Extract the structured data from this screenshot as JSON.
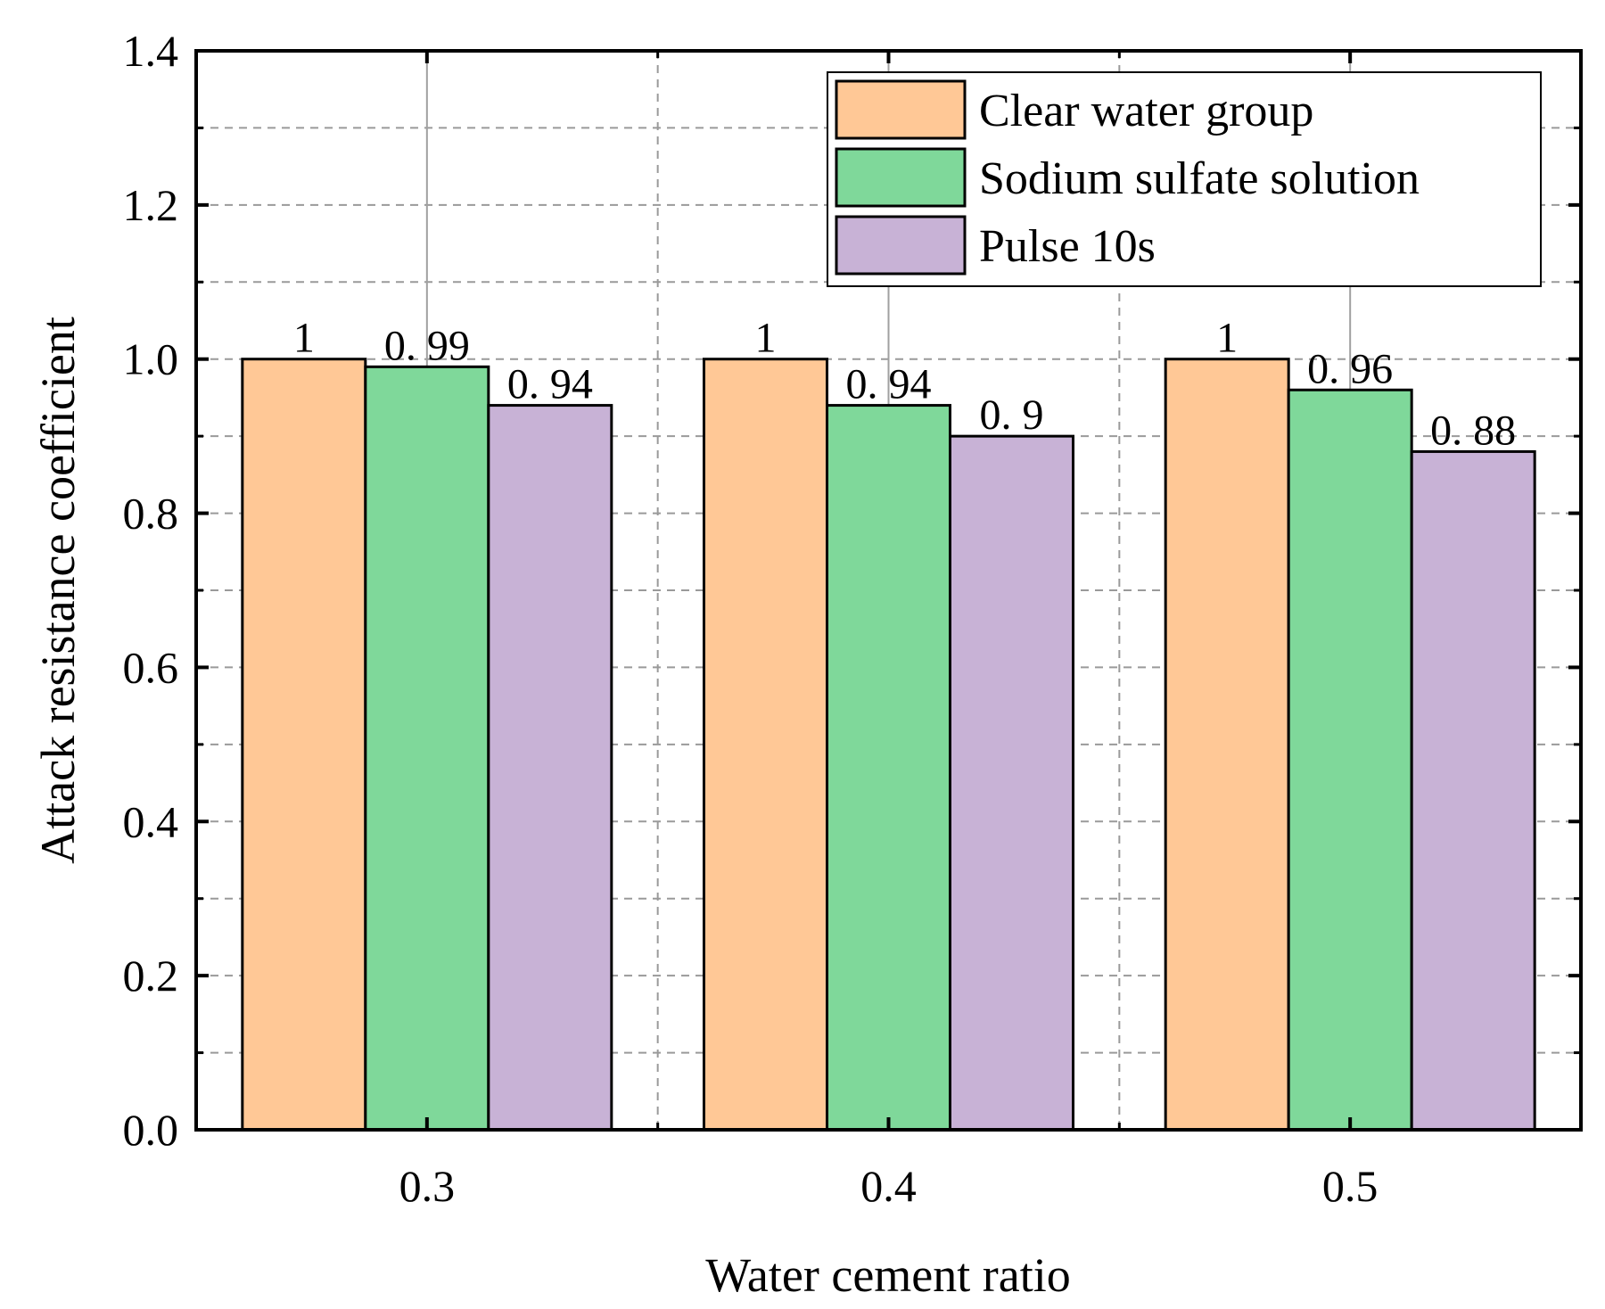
{
  "chart_data": {
    "type": "bar",
    "title": "",
    "xlabel": "Water cement ratio",
    "ylabel": "Attack resistance coefficient",
    "categories": [
      "0.3",
      "0.4",
      "0.5"
    ],
    "ylim": [
      0,
      1.4
    ],
    "yticks": [
      "0.0",
      "0.2",
      "0.4",
      "0.6",
      "0.8",
      "1.0",
      "1.2",
      "1.4"
    ],
    "grid": true,
    "legend_position": "top-right",
    "series": [
      {
        "name": "Clear water group",
        "color": "#FFC896",
        "values": [
          1,
          1,
          1
        ],
        "labels": [
          "1",
          "1",
          "1"
        ]
      },
      {
        "name": "Sodium sulfate solution",
        "color": "#7FD89A",
        "values": [
          0.99,
          0.94,
          0.96
        ],
        "labels": [
          "0. 99",
          "0. 94",
          "0. 96"
        ]
      },
      {
        "name": "Pulse 10s",
        "color": "#C8B2D6",
        "values": [
          0.94,
          0.9,
          0.88
        ],
        "labels": [
          "0. 94",
          "0. 9",
          "0. 88"
        ]
      }
    ]
  }
}
